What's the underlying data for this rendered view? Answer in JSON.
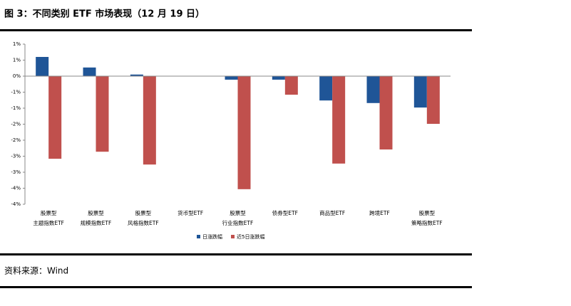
{
  "chart_data": {
    "type": "bar",
    "title": "图 3：不同类别 ETF 市场表现（12 月 19 日）",
    "source": "资料来源：Wind",
    "categories": [
      [
        "股票型",
        "主题指数ETF"
      ],
      [
        "股票型",
        "规模指数ETF"
      ],
      [
        "股票型",
        "风格指数ETF"
      ],
      [
        "货币型ETF"
      ],
      [
        "股票型",
        "行业指数ETF"
      ],
      [
        "债券型ETF"
      ],
      [
        "商品型ETF"
      ],
      [
        "跨境ETF"
      ],
      [
        "股票型",
        "策略指数ETF"
      ]
    ],
    "series": [
      {
        "name": "日涨跌幅",
        "color": "#1f5597",
        "values": [
          0.6,
          0.27,
          0.05,
          0,
          -0.11,
          -0.11,
          -0.76,
          -0.84,
          -0.98
        ]
      },
      {
        "name": "近5日涨跌幅",
        "color": "#c0504d",
        "values": [
          -2.58,
          -2.36,
          -2.76,
          0,
          -3.53,
          -0.58,
          -2.73,
          -2.29,
          -1.49
        ]
      }
    ],
    "ylim": [
      -4,
      1
    ],
    "yticks": [
      {
        "value": 1,
        "label": "1%"
      },
      {
        "value": 0.5,
        "label": "1%"
      },
      {
        "value": 0,
        "label": "0%"
      },
      {
        "value": -0.5,
        "label": "-1%"
      },
      {
        "value": -1,
        "label": "-1%"
      },
      {
        "value": -1.5,
        "label": "-2%"
      },
      {
        "value": -2,
        "label": "-2%"
      },
      {
        "value": -2.5,
        "label": "-3%"
      },
      {
        "value": -3,
        "label": "-3%"
      },
      {
        "value": -3.5,
        "label": "-4%"
      },
      {
        "value": -4,
        "label": "-4%"
      }
    ],
    "legend": "bottom"
  }
}
